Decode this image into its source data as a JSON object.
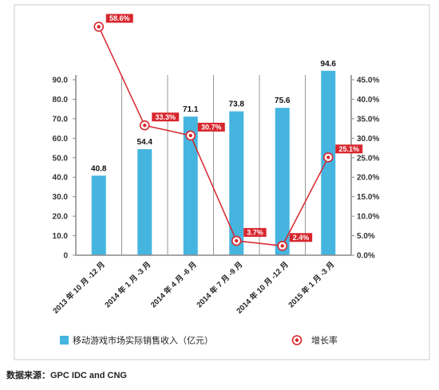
{
  "chart_data": {
    "type": "bar",
    "categories": [
      "2013 年 10 月 -12 月",
      "2014 年 1 月 -3 月",
      "2014 年 4 月 -6 月",
      "2014 年 7 月 -9 月",
      "2014 年 10 月 -12 月",
      "2015 年 1 月 -3 月"
    ],
    "series": [
      {
        "name": "移动游戏市场实际销售收入（亿元）",
        "type": "bar",
        "axis": "left",
        "values": [
          40.8,
          54.4,
          71.1,
          73.8,
          75.6,
          94.6
        ],
        "value_labels": [
          "40.8",
          "54.4",
          "71.1",
          "73.8",
          "75.6",
          "94.6"
        ],
        "color": "#45b5e0"
      },
      {
        "name": "增长率",
        "type": "line",
        "axis": "right",
        "values": [
          58.6,
          33.3,
          30.7,
          3.7,
          2.4,
          25.1
        ],
        "value_labels": [
          "58.6%",
          "33.3%",
          "30.7%",
          "3.7%",
          "2.4%",
          "25.1%"
        ],
        "color": "#d8262d"
      }
    ],
    "left_axis": {
      "ylim": [
        0,
        90
      ],
      "ticks": [
        0,
        10,
        20,
        30,
        40,
        50,
        60,
        70,
        80,
        90
      ],
      "tick_labels": [
        "0",
        "10.0",
        "20.0",
        "30.0",
        "40.0",
        "50.0",
        "60.0",
        "70.0",
        "80.0",
        "90.0"
      ]
    },
    "right_axis": {
      "ylim": [
        0,
        45
      ],
      "ticks": [
        0,
        5,
        10,
        15,
        20,
        25,
        30,
        35,
        40,
        45
      ],
      "tick_labels": [
        "0.0%",
        "5.0%",
        "10.0%",
        "15.0%",
        "20.0%",
        "25.0%",
        "30.0%",
        "35.0%",
        "40.0%",
        "45.0%"
      ]
    },
    "grid": false,
    "legend": "bottom"
  },
  "source_note": "数据来源：GPC IDC and CNG"
}
